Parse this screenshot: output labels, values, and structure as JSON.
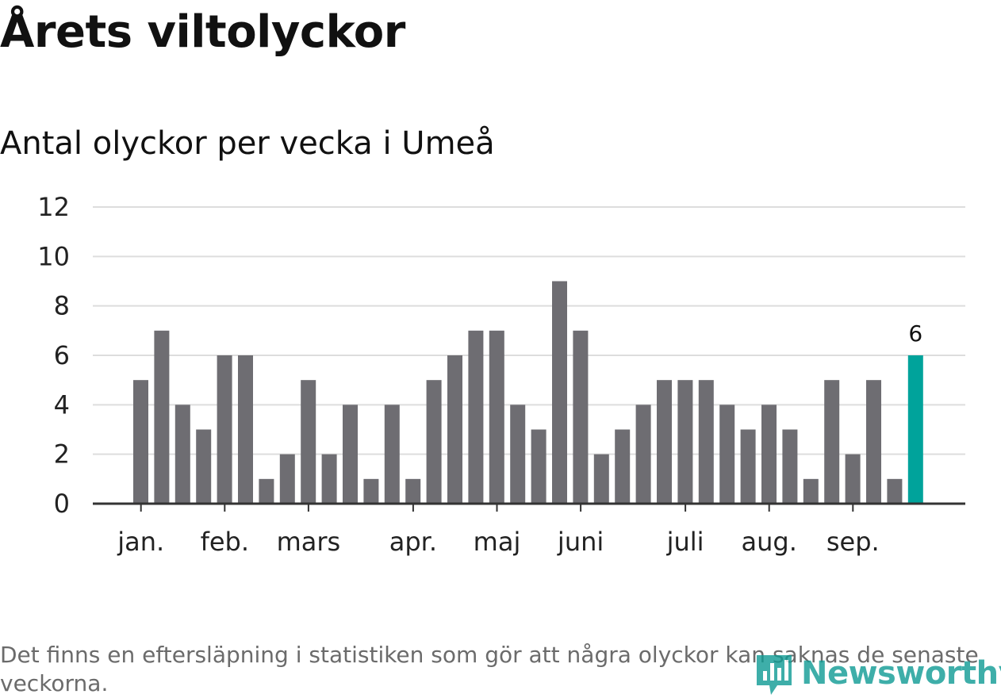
{
  "header": {
    "title": "Årets viltolyckor",
    "subtitle": "Antal olyckor per vecka i Umeå"
  },
  "footnote": "Det finns en eftersläpning i statistiken som gör att några olyckor kan saknas de senaste veckorna.",
  "logo": {
    "text": "Newsworthy",
    "icon": "bar-chart-speech-icon"
  },
  "colors": {
    "bar": "#6e6d72",
    "highlight": "#00a39b",
    "grid": "#dddddd",
    "axis": "#333333",
    "brand": "#0f9b94"
  },
  "chart_data": {
    "type": "bar",
    "ylim": [
      0,
      12
    ],
    "yticks": [
      0,
      2,
      4,
      6,
      8,
      10,
      12
    ],
    "grid": true,
    "values": [
      5,
      7,
      4,
      3,
      6,
      6,
      1,
      2,
      5,
      2,
      4,
      1,
      4,
      1,
      5,
      6,
      7,
      7,
      4,
      3,
      9,
      7,
      2,
      3,
      4,
      5,
      5,
      5,
      4,
      3,
      4,
      3,
      1,
      5,
      2,
      5,
      1,
      6
    ],
    "highlight_index": 37,
    "data_labels": [
      {
        "index": 37,
        "text": "6"
      }
    ],
    "month_labels": [
      {
        "label": "jan.",
        "at_bar": 0.5
      },
      {
        "label": "feb.",
        "at_bar": 4.5
      },
      {
        "label": "mars",
        "at_bar": 8.5
      },
      {
        "label": "apr.",
        "at_bar": 13.5
      },
      {
        "label": "maj",
        "at_bar": 17.5
      },
      {
        "label": "juni",
        "at_bar": 21.5
      },
      {
        "label": "juli",
        "at_bar": 26.5
      },
      {
        "label": "aug.",
        "at_bar": 30.5
      },
      {
        "label": "sep.",
        "at_bar": 34.5
      }
    ],
    "title": "",
    "xlabel": "",
    "ylabel": ""
  }
}
